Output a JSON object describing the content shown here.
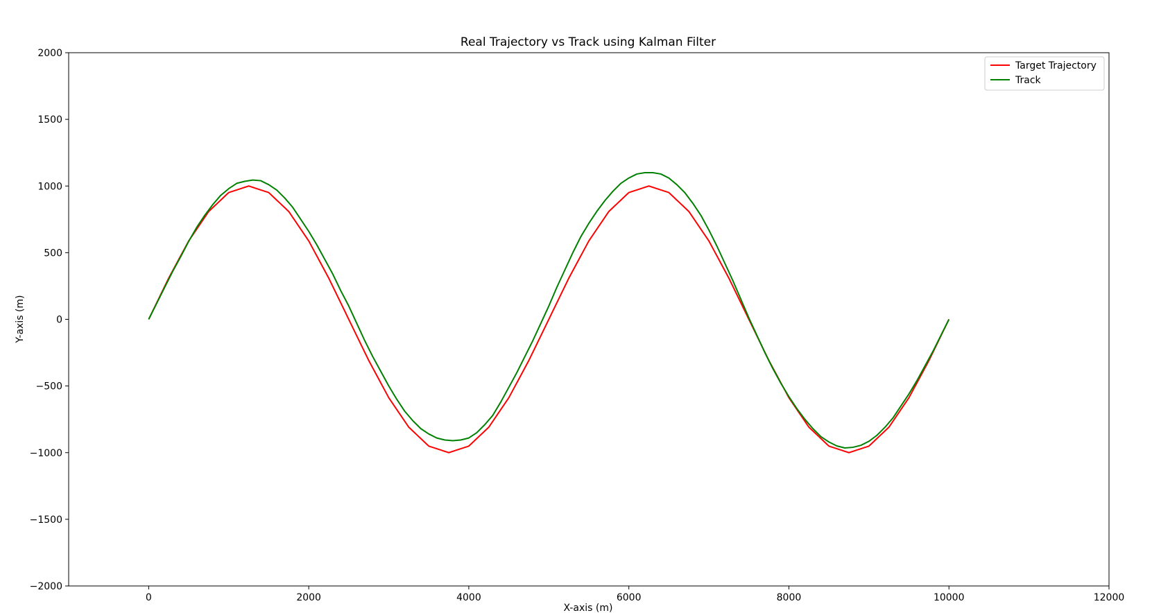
{
  "chart_data": {
    "type": "line",
    "title": "Real Trajectory vs Track using Kalman Filter",
    "xlabel": "X-axis (m)",
    "ylabel": "Y-axis (m)",
    "xlim": [
      -1000,
      12000
    ],
    "ylim": [
      -2000,
      2000
    ],
    "x_ticks": [
      0,
      2000,
      4000,
      6000,
      8000,
      10000,
      12000
    ],
    "y_ticks": [
      -2000,
      -1500,
      -1000,
      -500,
      0,
      500,
      1000,
      1500,
      2000
    ],
    "x_tick_labels": [
      "0",
      "2000",
      "4000",
      "6000",
      "8000",
      "10000",
      "12000"
    ],
    "y_tick_labels": [
      "−2000",
      "−1500",
      "−1000",
      "−500",
      "0",
      "500",
      "1000",
      "1500",
      "2000"
    ],
    "grid": false,
    "legend_position": "top-right",
    "series": [
      {
        "name": "Target Trajectory",
        "color": "#ff0000",
        "x": [
          0,
          250,
          500,
          750,
          1000,
          1250,
          1500,
          1750,
          2000,
          2250,
          2500,
          2750,
          3000,
          3250,
          3500,
          3750,
          4000,
          4250,
          4500,
          4750,
          5000,
          5250,
          5500,
          5750,
          6000,
          6250,
          6500,
          6750,
          7000,
          7250,
          7500,
          7750,
          8000,
          8250,
          8500,
          8750,
          9000,
          9250,
          9500,
          9750,
          10000
        ],
        "y": [
          0,
          309,
          588,
          809,
          951,
          1000,
          951,
          809,
          588,
          309,
          0,
          -309,
          -588,
          -809,
          -951,
          -1000,
          -951,
          -809,
          -588,
          -309,
          0,
          309,
          588,
          809,
          951,
          1000,
          951,
          809,
          588,
          309,
          0,
          -309,
          -588,
          -809,
          -951,
          -1000,
          -951,
          -809,
          -588,
          -309,
          0
        ]
      },
      {
        "name": "Track",
        "color": "#008000",
        "x": [
          0,
          100,
          200,
          300,
          400,
          500,
          600,
          700,
          800,
          900,
          1000,
          1100,
          1200,
          1300,
          1400,
          1500,
          1600,
          1700,
          1800,
          1900,
          2000,
          2100,
          2200,
          2300,
          2400,
          2500,
          2600,
          2700,
          2800,
          2900,
          3000,
          3100,
          3200,
          3300,
          3400,
          3500,
          3600,
          3700,
          3800,
          3900,
          4000,
          4100,
          4200,
          4300,
          4400,
          4500,
          4600,
          4700,
          4800,
          4900,
          5000,
          5100,
          5200,
          5300,
          5400,
          5500,
          5600,
          5700,
          5800,
          5900,
          6000,
          6100,
          6200,
          6300,
          6400,
          6500,
          6600,
          6700,
          6800,
          6900,
          7000,
          7100,
          7200,
          7300,
          7400,
          7500,
          7600,
          7700,
          7800,
          7900,
          8000,
          8100,
          8200,
          8300,
          8400,
          8500,
          8600,
          8700,
          8800,
          8900,
          9000,
          9100,
          9200,
          9300,
          9400,
          9500,
          9600,
          9700,
          9800,
          9900,
          10000
        ],
        "y": [
          0,
          120,
          240,
          360,
          470,
          585,
          690,
          780,
          860,
          930,
          980,
          1020,
          1035,
          1045,
          1040,
          1010,
          970,
          910,
          840,
          750,
          660,
          560,
          450,
          340,
          215,
          100,
          -30,
          -160,
          -280,
          -390,
          -500,
          -600,
          -690,
          -760,
          -820,
          -860,
          -890,
          -905,
          -910,
          -905,
          -890,
          -850,
          -790,
          -720,
          -620,
          -510,
          -400,
          -280,
          -160,
          -30,
          100,
          240,
          370,
          500,
          620,
          720,
          810,
          890,
          960,
          1020,
          1060,
          1090,
          1100,
          1100,
          1090,
          1060,
          1010,
          950,
          870,
          780,
          670,
          550,
          420,
          290,
          150,
          10,
          -120,
          -250,
          -370,
          -480,
          -580,
          -670,
          -750,
          -820,
          -880,
          -920,
          -950,
          -965,
          -960,
          -945,
          -915,
          -870,
          -810,
          -740,
          -650,
          -560,
          -460,
          -350,
          -240,
          -120,
          0
        ]
      }
    ]
  }
}
